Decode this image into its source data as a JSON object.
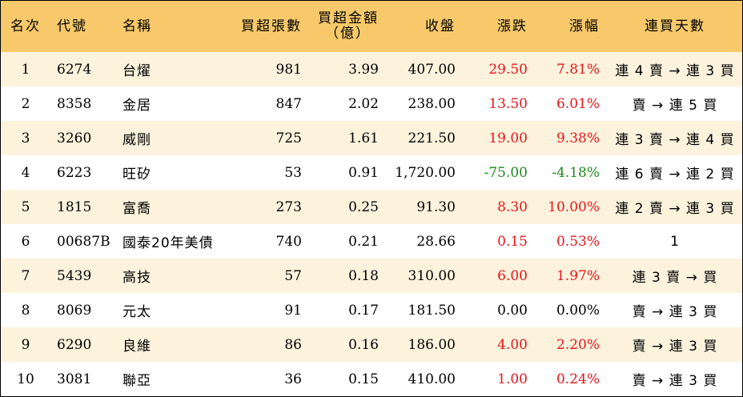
{
  "headers": {
    "rank": "名次",
    "code": "代號",
    "name": "名稱",
    "buy_lots": "買超張數",
    "buy_amount_line1": "買超金額",
    "buy_amount_line2": "（億）",
    "close": "收盤",
    "change": "漲跌",
    "pct": "漲幅",
    "streak": "連買天數"
  },
  "rows": [
    {
      "rank": "1",
      "code": "6274",
      "name": "台燿",
      "buy_lots": "981",
      "buy_amount": "3.99",
      "close": "407.00",
      "change": "29.50",
      "pct": "7.81%",
      "streak": "連 4 賣 → 連 3 買",
      "dir": "up"
    },
    {
      "rank": "2",
      "code": "8358",
      "name": "金居",
      "buy_lots": "847",
      "buy_amount": "2.02",
      "close": "238.00",
      "change": "13.50",
      "pct": "6.01%",
      "streak": "賣 → 連 5 買",
      "dir": "up"
    },
    {
      "rank": "3",
      "code": "3260",
      "name": "威剛",
      "buy_lots": "725",
      "buy_amount": "1.61",
      "close": "221.50",
      "change": "19.00",
      "pct": "9.38%",
      "streak": "連 3 賣 → 連 4 買",
      "dir": "up"
    },
    {
      "rank": "4",
      "code": "6223",
      "name": "旺矽",
      "buy_lots": "53",
      "buy_amount": "0.91",
      "close": "1,720.00",
      "change": "-75.00",
      "pct": "-4.18%",
      "streak": "連 6 賣 → 連 2 買",
      "dir": "down"
    },
    {
      "rank": "5",
      "code": "1815",
      "name": "富喬",
      "buy_lots": "273",
      "buy_amount": "0.25",
      "close": "91.30",
      "change": "8.30",
      "pct": "10.00%",
      "streak": "連 2 賣 → 連 3 買",
      "dir": "up"
    },
    {
      "rank": "6",
      "code": "00687B",
      "name": "國泰20年美債",
      "buy_lots": "740",
      "buy_amount": "0.21",
      "close": "28.66",
      "change": "0.15",
      "pct": "0.53%",
      "streak": "1",
      "dir": "up"
    },
    {
      "rank": "7",
      "code": "5439",
      "name": "高技",
      "buy_lots": "57",
      "buy_amount": "0.18",
      "close": "310.00",
      "change": "6.00",
      "pct": "1.97%",
      "streak": "連 3 賣 → 買",
      "dir": "up"
    },
    {
      "rank": "8",
      "code": "8069",
      "name": "元太",
      "buy_lots": "91",
      "buy_amount": "0.17",
      "close": "181.50",
      "change": "0.00",
      "pct": "0.00%",
      "streak": "賣 → 連 3 買",
      "dir": "flat"
    },
    {
      "rank": "9",
      "code": "6290",
      "name": "良維",
      "buy_lots": "86",
      "buy_amount": "0.16",
      "close": "186.00",
      "change": "4.00",
      "pct": "2.20%",
      "streak": "賣 → 連 3 買",
      "dir": "up"
    },
    {
      "rank": "10",
      "code": "3081",
      "name": "聯亞",
      "buy_lots": "36",
      "buy_amount": "0.15",
      "close": "410.00",
      "change": "1.00",
      "pct": "0.24%",
      "streak": "賣 → 連 3 買",
      "dir": "up"
    }
  ]
}
